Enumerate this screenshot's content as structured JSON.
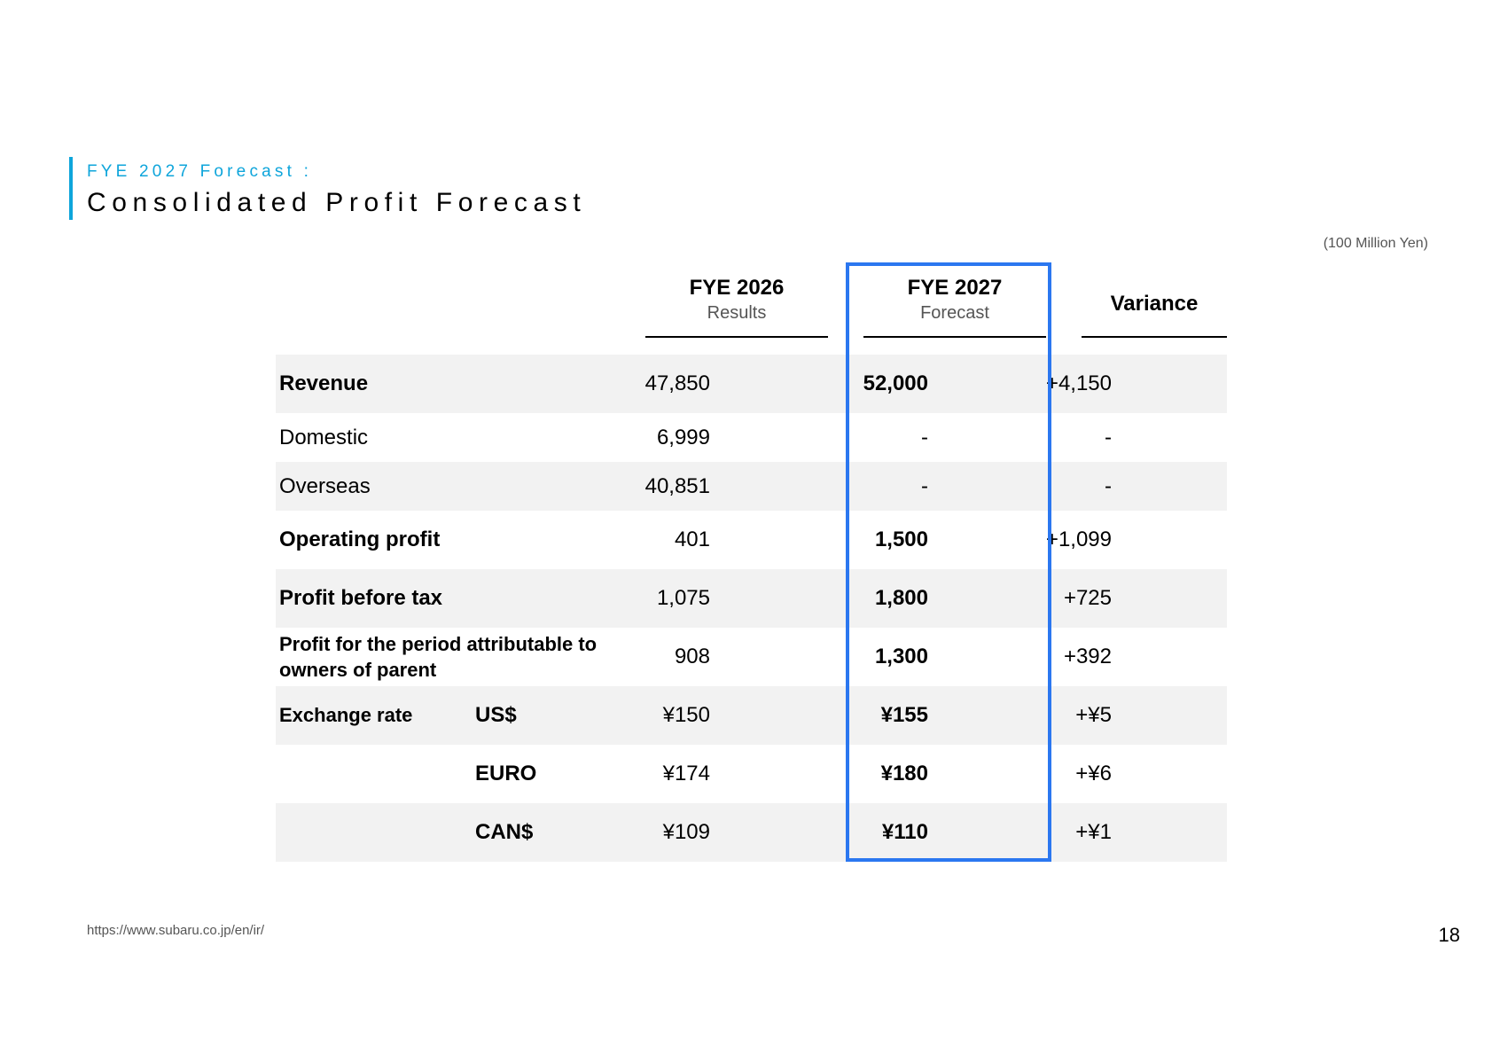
{
  "header": {
    "subtitle": "FYE 2027 Forecast :",
    "title": "Consolidated Profit Forecast",
    "unit_note": "(100 Million Yen)"
  },
  "columns": {
    "fye2026": {
      "main": "FYE 2026",
      "sub": "Results"
    },
    "fye2027": {
      "main": "FYE 2027",
      "sub": "Forecast"
    },
    "variance": {
      "main": "Variance"
    }
  },
  "rows": [
    {
      "label": "Revenue",
      "currency": "",
      "fye2026": "47,850",
      "fye2027": "52,000",
      "variance": "+4,150"
    },
    {
      "label": "Domestic",
      "currency": "",
      "fye2026": "6,999",
      "fye2027": "-",
      "variance": "-"
    },
    {
      "label": "Overseas",
      "currency": "",
      "fye2026": "40,851",
      "fye2027": "-",
      "variance": "-"
    },
    {
      "label": "Operating profit",
      "currency": "",
      "fye2026": "401",
      "fye2027": "1,500",
      "variance": "+1,099"
    },
    {
      "label": "Profit before tax",
      "currency": "",
      "fye2026": "1,075",
      "fye2027": "1,800",
      "variance": "+725"
    },
    {
      "label": "Profit for the period attributable to owners of parent",
      "currency": "",
      "fye2026": "908",
      "fye2027": "1,300",
      "variance": "+392"
    },
    {
      "label": "Exchange rate",
      "currency": "US$",
      "fye2026": "¥150",
      "fye2027": "¥155",
      "variance": "+¥5"
    },
    {
      "label": "",
      "currency": "EURO",
      "fye2026": "¥174",
      "fye2027": "¥180",
      "variance": "+¥6"
    },
    {
      "label": "",
      "currency": "CAN$",
      "fye2026": "¥109",
      "fye2027": "¥110",
      "variance": "+¥1"
    }
  ],
  "colors": {
    "accent": "#0ea5db",
    "highlight_border": "#2b77f0",
    "row_shade": "#f2f2f2"
  },
  "footer": {
    "url": "https://www.subaru.co.jp/en/ir/",
    "page_number": "18"
  }
}
